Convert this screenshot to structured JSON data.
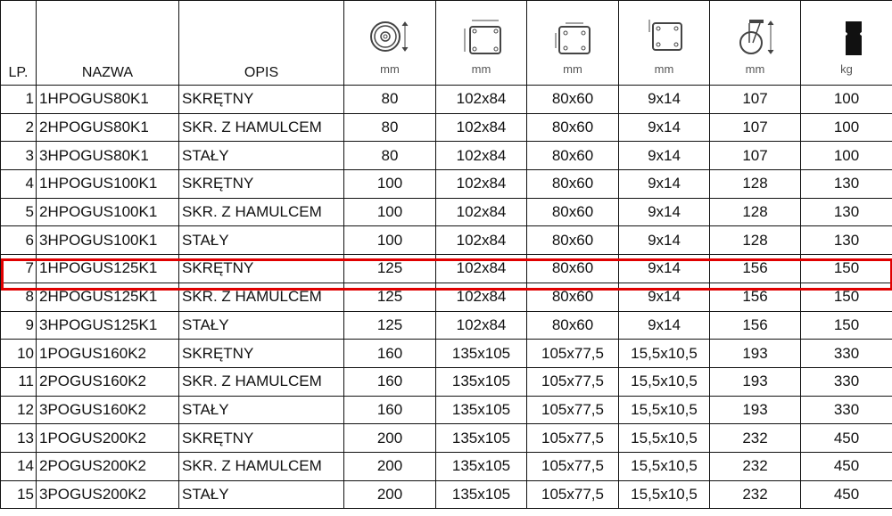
{
  "header": {
    "lp": "LP.",
    "nazwa": "NAZWA",
    "opis": "OPIS",
    "units": [
      "mm",
      "mm",
      "mm",
      "mm",
      "mm",
      "kg"
    ],
    "icons": [
      "wheel-diameter-icon",
      "plate-size-icon",
      "bolt-spacing-icon",
      "bolt-hole-icon",
      "total-height-icon",
      "load-capacity-icon"
    ]
  },
  "highlight_color": "#e00000",
  "highlighted_row": 7,
  "rows": [
    [
      "1",
      "1HPOGUS80K1",
      "SKRĘTNY",
      "80",
      "102x84",
      "80x60",
      "9x14",
      "107",
      "100"
    ],
    [
      "2",
      "2HPOGUS80K1",
      "SKR. Z HAMULCEM",
      "80",
      "102x84",
      "80x60",
      "9x14",
      "107",
      "100"
    ],
    [
      "3",
      "3HPOGUS80K1",
      "STAŁY",
      "80",
      "102x84",
      "80x60",
      "9x14",
      "107",
      "100"
    ],
    [
      "4",
      "1HPOGUS100K1",
      "SKRĘTNY",
      "100",
      "102x84",
      "80x60",
      "9x14",
      "128",
      "130"
    ],
    [
      "5",
      "2HPOGUS100K1",
      "SKR. Z HAMULCEM",
      "100",
      "102x84",
      "80x60",
      "9x14",
      "128",
      "130"
    ],
    [
      "6",
      "3HPOGUS100K1",
      "STAŁY",
      "100",
      "102x84",
      "80x60",
      "9x14",
      "128",
      "130"
    ],
    [
      "7",
      "1HPOGUS125K1",
      "SKRĘTNY",
      "125",
      "102x84",
      "80x60",
      "9x14",
      "156",
      "150"
    ],
    [
      "8",
      "2HPOGUS125K1",
      "SKR. Z HAMULCEM",
      "125",
      "102x84",
      "80x60",
      "9x14",
      "156",
      "150"
    ],
    [
      "9",
      "3HPOGUS125K1",
      "STAŁY",
      "125",
      "102x84",
      "80x60",
      "9x14",
      "156",
      "150"
    ],
    [
      "10",
      "1POGUS160K2",
      "SKRĘTNY",
      "160",
      "135x105",
      "105x77,5",
      "15,5x10,5",
      "193",
      "330"
    ],
    [
      "11",
      "2POGUS160K2",
      "SKR. Z HAMULCEM",
      "160",
      "135x105",
      "105x77,5",
      "15,5x10,5",
      "193",
      "330"
    ],
    [
      "12",
      "3POGUS160K2",
      "STAŁY",
      "160",
      "135x105",
      "105x77,5",
      "15,5x10,5",
      "193",
      "330"
    ],
    [
      "13",
      "1POGUS200K2",
      "SKRĘTNY",
      "200",
      "135x105",
      "105x77,5",
      "15,5x10,5",
      "232",
      "450"
    ],
    [
      "14",
      "2POGUS200K2",
      "SKR. Z HAMULCEM",
      "200",
      "135x105",
      "105x77,5",
      "15,5x10,5",
      "232",
      "450"
    ],
    [
      "15",
      "3POGUS200K2",
      "STAŁY",
      "200",
      "135x105",
      "105x77,5",
      "15,5x10,5",
      "232",
      "450"
    ]
  ]
}
